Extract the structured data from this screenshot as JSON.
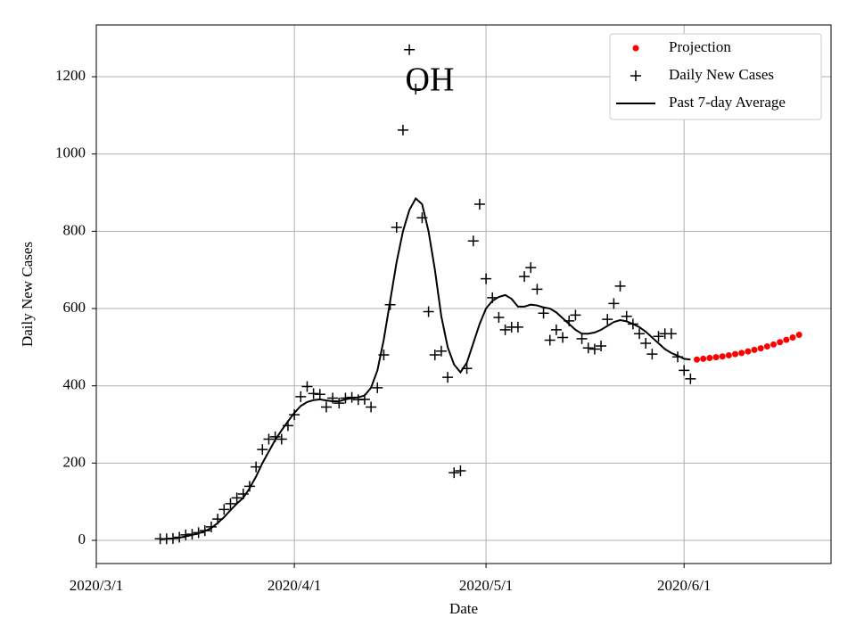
{
  "chart_data": {
    "type": "line",
    "title": "OH",
    "xlabel": "Date",
    "ylabel": "Daily New Cases",
    "xlim": [
      "2020/3/1",
      "2020/6/24"
    ],
    "xticks": [
      "2020/3/1",
      "2020/4/1",
      "2020/5/1",
      "2020/6/1"
    ],
    "ylim": [
      -60,
      1334
    ],
    "yticks": [
      0,
      200,
      400,
      600,
      800,
      1000,
      1200
    ],
    "grid": true,
    "legend": "upper right",
    "series": [
      {
        "name": "Projection",
        "color": "#ff0000",
        "style": "dots",
        "x": [
          "2020/6/3",
          "2020/6/4",
          "2020/6/5",
          "2020/6/6",
          "2020/6/7",
          "2020/6/8",
          "2020/6/9",
          "2020/6/10",
          "2020/6/11",
          "2020/6/12",
          "2020/6/13",
          "2020/6/14",
          "2020/6/15",
          "2020/6/16",
          "2020/6/17",
          "2020/6/18",
          "2020/6/19"
        ],
        "values": [
          468,
          470,
          472,
          474,
          476,
          479,
          482,
          485,
          489,
          493,
          497,
          502,
          507,
          513,
          519,
          525,
          532
        ]
      },
      {
        "name": "Daily New Cases",
        "color": "#000000",
        "style": "plus",
        "x": [
          "2020/3/11",
          "2020/3/12",
          "2020/3/13",
          "2020/3/14",
          "2020/3/15",
          "2020/3/16",
          "2020/3/17",
          "2020/3/18",
          "2020/3/19",
          "2020/3/20",
          "2020/3/21",
          "2020/3/22",
          "2020/3/23",
          "2020/3/24",
          "2020/3/25",
          "2020/3/26",
          "2020/3/27",
          "2020/3/28",
          "2020/3/29",
          "2020/3/30",
          "2020/3/31",
          "2020/4/1",
          "2020/4/2",
          "2020/4/3",
          "2020/4/4",
          "2020/4/5",
          "2020/4/6",
          "2020/4/7",
          "2020/4/8",
          "2020/4/9",
          "2020/4/10",
          "2020/4/11",
          "2020/4/12",
          "2020/4/13",
          "2020/4/14",
          "2020/4/15",
          "2020/4/16",
          "2020/4/17",
          "2020/4/18",
          "2020/4/19",
          "2020/4/20",
          "2020/4/21",
          "2020/4/22",
          "2020/4/23",
          "2020/4/24",
          "2020/4/25",
          "2020/4/26",
          "2020/4/27",
          "2020/4/28",
          "2020/4/29",
          "2020/4/30",
          "2020/5/1",
          "2020/5/2",
          "2020/5/3",
          "2020/5/4",
          "2020/5/5",
          "2020/5/6",
          "2020/5/7",
          "2020/5/8",
          "2020/5/9",
          "2020/5/10",
          "2020/5/11",
          "2020/5/12",
          "2020/5/13",
          "2020/5/14",
          "2020/5/15",
          "2020/5/16",
          "2020/5/17",
          "2020/5/18",
          "2020/5/19",
          "2020/5/20",
          "2020/5/21",
          "2020/5/22",
          "2020/5/23",
          "2020/5/24",
          "2020/5/25",
          "2020/5/26",
          "2020/5/27",
          "2020/5/28",
          "2020/5/29",
          "2020/5/30",
          "2020/5/31",
          "2020/6/1",
          "2020/6/2"
        ],
        "values": [
          4,
          4,
          5,
          8,
          14,
          16,
          20,
          25,
          35,
          55,
          80,
          95,
          110,
          120,
          140,
          190,
          235,
          262,
          268,
          262,
          297,
          325,
          372,
          398,
          380,
          378,
          345,
          368,
          355,
          368,
          370,
          364,
          365,
          345,
          395,
          480,
          610,
          810,
          1062,
          1270,
          1168,
          835,
          592,
          480,
          490,
          422,
          175,
          180,
          445,
          775,
          870,
          677,
          628,
          577,
          545,
          552,
          552,
          683,
          706,
          650,
          588,
          518,
          545,
          525,
          568,
          583,
          522,
          498,
          495,
          503,
          572,
          613,
          658,
          580,
          560,
          535,
          510,
          482,
          528,
          535,
          535,
          475,
          440,
          418
        ]
      },
      {
        "name": "Past 7-day Average",
        "color": "#000000",
        "style": "line",
        "x": [
          "2020/3/11",
          "2020/3/12",
          "2020/3/13",
          "2020/3/14",
          "2020/3/15",
          "2020/3/16",
          "2020/3/17",
          "2020/3/18",
          "2020/3/19",
          "2020/3/20",
          "2020/3/21",
          "2020/3/22",
          "2020/3/23",
          "2020/3/24",
          "2020/3/25",
          "2020/3/26",
          "2020/3/27",
          "2020/3/28",
          "2020/3/29",
          "2020/3/30",
          "2020/3/31",
          "2020/4/1",
          "2020/4/2",
          "2020/4/3",
          "2020/4/4",
          "2020/4/5",
          "2020/4/6",
          "2020/4/7",
          "2020/4/8",
          "2020/4/9",
          "2020/4/10",
          "2020/4/11",
          "2020/4/12",
          "2020/4/13",
          "2020/4/14",
          "2020/4/15",
          "2020/4/16",
          "2020/4/17",
          "2020/4/18",
          "2020/4/19",
          "2020/4/20",
          "2020/4/21",
          "2020/4/22",
          "2020/4/23",
          "2020/4/24",
          "2020/4/25",
          "2020/4/26",
          "2020/4/27",
          "2020/4/28",
          "2020/4/29",
          "2020/4/30",
          "2020/5/1",
          "2020/5/2",
          "2020/5/3",
          "2020/5/4",
          "2020/5/5",
          "2020/5/6",
          "2020/5/7",
          "2020/5/8",
          "2020/5/9",
          "2020/5/10",
          "2020/5/11",
          "2020/5/12",
          "2020/5/13",
          "2020/5/14",
          "2020/5/15",
          "2020/5/16",
          "2020/5/17",
          "2020/5/18",
          "2020/5/19",
          "2020/5/20",
          "2020/5/21",
          "2020/5/22",
          "2020/5/23",
          "2020/5/24",
          "2020/5/25",
          "2020/5/26",
          "2020/5/27",
          "2020/5/28",
          "2020/5/29",
          "2020/5/30",
          "2020/5/31",
          "2020/6/1",
          "2020/6/2"
        ],
        "values": [
          3,
          4,
          5,
          7,
          10,
          14,
          18,
          24,
          32,
          45,
          60,
          78,
          95,
          110,
          135,
          165,
          200,
          230,
          260,
          285,
          308,
          330,
          348,
          358,
          363,
          365,
          362,
          360,
          360,
          365,
          368,
          370,
          375,
          395,
          440,
          520,
          620,
          720,
          800,
          855,
          885,
          870,
          800,
          700,
          580,
          500,
          455,
          435,
          460,
          510,
          560,
          600,
          620,
          630,
          635,
          625,
          605,
          605,
          610,
          608,
          603,
          600,
          590,
          575,
          560,
          545,
          535,
          535,
          538,
          545,
          555,
          565,
          570,
          567,
          560,
          552,
          540,
          525,
          510,
          495,
          485,
          478,
          470,
          468
        ]
      }
    ]
  }
}
